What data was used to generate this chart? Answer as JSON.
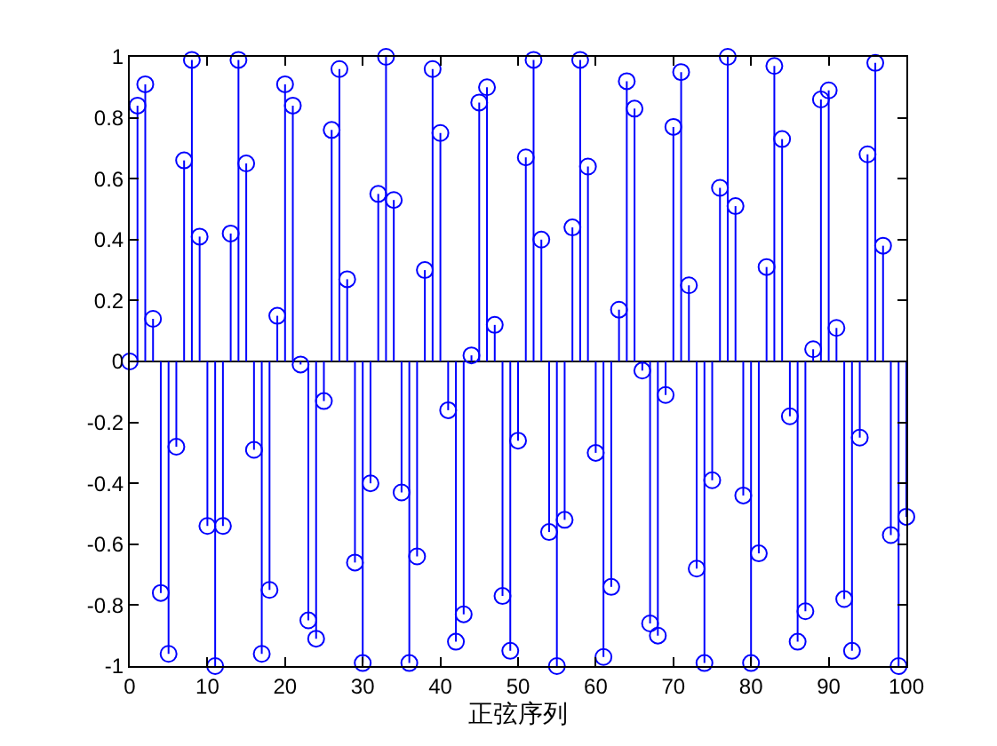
{
  "chart_data": {
    "type": "lollipop",
    "xlabel": "正弦序列",
    "x": [
      0,
      1,
      2,
      3,
      4,
      5,
      6,
      7,
      8,
      9,
      10,
      11,
      12,
      13,
      14,
      15,
      16,
      17,
      18,
      19,
      20,
      21,
      22,
      23,
      24,
      25,
      26,
      27,
      28,
      29,
      30,
      31,
      32,
      33,
      34,
      35,
      36,
      37,
      38,
      39,
      40,
      41,
      42,
      43,
      44,
      45,
      46,
      47,
      48,
      49,
      50,
      51,
      52,
      53,
      54,
      55,
      56,
      57,
      58,
      59,
      60,
      61,
      62,
      63,
      64,
      65,
      66,
      67,
      68,
      69,
      70,
      71,
      72,
      73,
      74,
      75,
      76,
      77,
      78,
      79,
      80,
      81,
      82,
      83,
      84,
      85,
      86,
      87,
      88,
      89,
      90,
      91,
      92,
      93,
      94,
      95,
      96,
      97,
      98,
      99,
      100
    ],
    "values": [
      0,
      0.84,
      0.91,
      0.14,
      -0.76,
      -0.96,
      -0.28,
      0.66,
      0.99,
      0.41,
      -0.54,
      -1,
      -0.54,
      0.42,
      0.99,
      0.65,
      -0.29,
      -0.96,
      -0.75,
      0.15,
      0.91,
      0.84,
      -0.01,
      -0.85,
      -0.91,
      -0.13,
      0.76,
      0.96,
      0.27,
      -0.66,
      -0.99,
      -0.4,
      0.55,
      1,
      0.53,
      -0.43,
      -0.99,
      -0.64,
      0.3,
      0.96,
      0.75,
      -0.16,
      -0.92,
      -0.83,
      0.02,
      0.85,
      0.9,
      0.12,
      -0.77,
      -0.95,
      -0.26,
      0.67,
      0.99,
      0.4,
      -0.56,
      -1,
      -0.52,
      0.44,
      0.99,
      0.64,
      -0.3,
      -0.97,
      -0.74,
      0.17,
      0.92,
      0.83,
      -0.03,
      -0.86,
      -0.9,
      -0.11,
      0.77,
      0.95,
      0.25,
      -0.68,
      -0.99,
      -0.39,
      0.57,
      1,
      0.51,
      -0.44,
      -0.99,
      -0.63,
      0.31,
      0.97,
      0.73,
      -0.18,
      -0.92,
      -0.82,
      0.04,
      0.86,
      0.89,
      0.11,
      -0.78,
      -0.95,
      -0.25,
      0.68,
      0.98,
      0.38,
      -0.57,
      -1,
      -0.51
    ],
    "color": "#0000ff",
    "marker": "circle",
    "xlim": [
      0,
      100
    ],
    "xticks": [
      0,
      10,
      20,
      30,
      40,
      50,
      60,
      70,
      80,
      90,
      100
    ],
    "ylim": [
      -1,
      1
    ],
    "yticks": [
      -1,
      -0.8,
      -0.6,
      -0.4,
      -0.2,
      0,
      0.2,
      0.4,
      0.6,
      0.8,
      1
    ],
    "grid": false,
    "ref_lines": [
      {
        "axis": "y",
        "value": 0,
        "color": "#000000"
      }
    ]
  }
}
